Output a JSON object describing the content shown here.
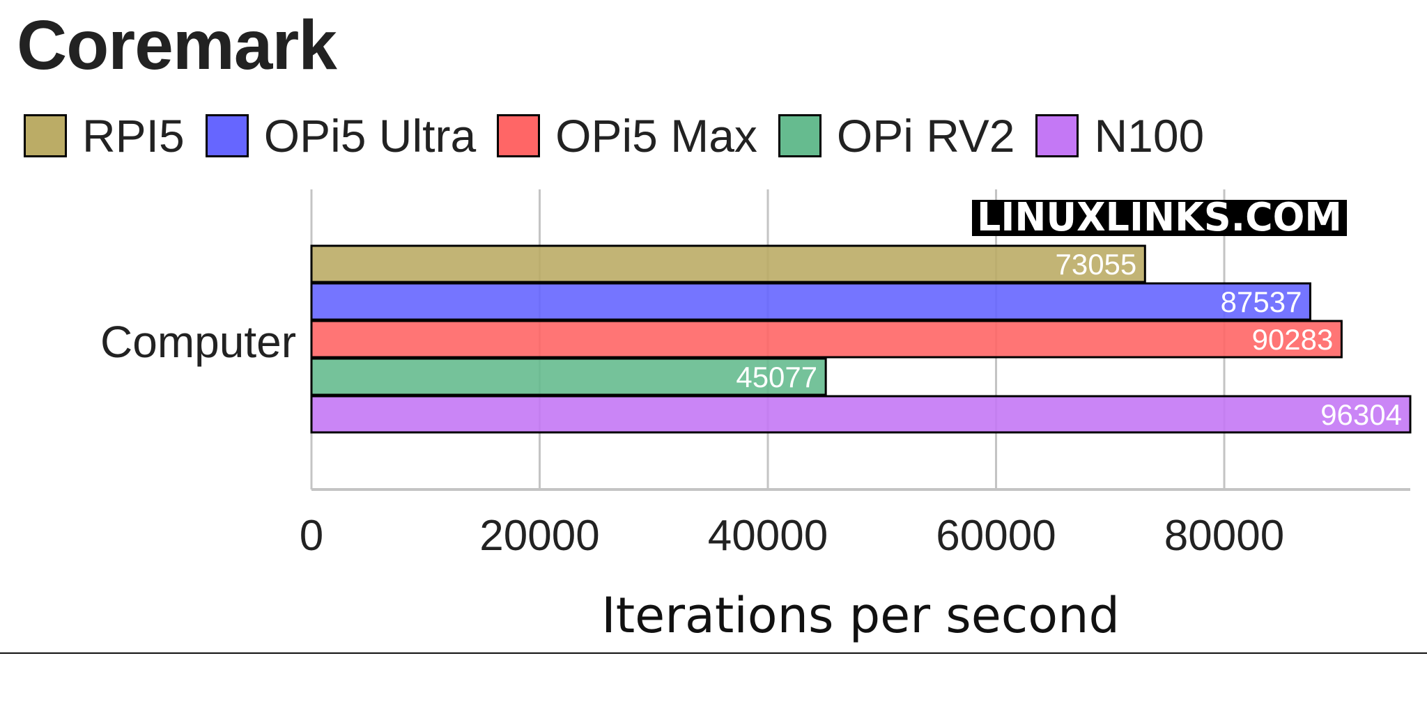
{
  "chart_data": {
    "type": "bar",
    "orientation": "horizontal",
    "title": "Coremark",
    "categories": [
      "Computer"
    ],
    "series": [
      {
        "name": "RPI5",
        "values": [
          73055
        ],
        "color": "#bbac66"
      },
      {
        "name": "OPi5 Ultra",
        "values": [
          87537
        ],
        "color": "#6666ff"
      },
      {
        "name": "OPi5 Max",
        "values": [
          90283
        ],
        "color": "#ff6666"
      },
      {
        "name": "OPi RV2",
        "values": [
          45077
        ],
        "color": "#66bb8f"
      },
      {
        "name": "N100",
        "values": [
          96304
        ],
        "color": "#c478f5"
      }
    ],
    "xlabel": "Iterations per second",
    "ylabel": "",
    "xlim": [
      0,
      96304
    ],
    "xticks": [
      "0",
      "20000",
      "40000",
      "60000",
      "80000"
    ],
    "grid": true,
    "legend": "top-left",
    "data_labels": true
  },
  "watermark": "LINUXLINKS.COM"
}
